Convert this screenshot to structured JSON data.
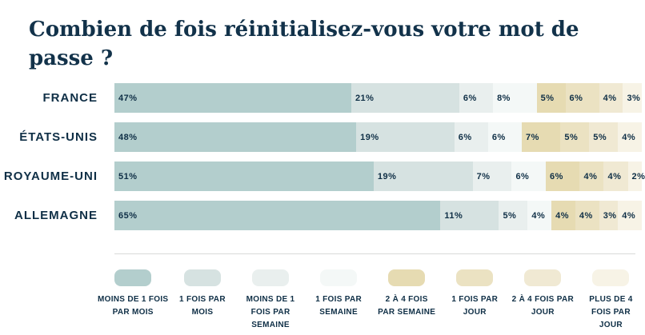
{
  "title": "Combien de fois réinitialisez-vous votre mot de passe ?",
  "colors": {
    "background": "#ffffff",
    "title_text": "#12324a",
    "label_text": "#0f2f46",
    "divider": "#d8dad8"
  },
  "chart_data": {
    "type": "bar",
    "variant": "horizontal-stacked-100",
    "title": "Combien de fois réinitialisez-vous votre mot de passe ?",
    "unit": "%",
    "xlim": [
      0,
      100
    ],
    "grid": false,
    "legend_position": "bottom",
    "categories": [
      "FRANCE",
      "ÉTATS-UNIS",
      "ROYAUME-UNI",
      "ALLEMAGNE"
    ],
    "series": [
      {
        "name": "MOINS DE 1 FOIS PAR MOIS",
        "legend_lines": [
          "MOINS DE 1 FOIS",
          "PAR MOIS"
        ],
        "color": "#b3cecd",
        "values": [
          47,
          48,
          51,
          65
        ]
      },
      {
        "name": "1 FOIS PAR MOIS",
        "legend_lines": [
          "1 FOIS PAR",
          "MOIS"
        ],
        "color": "#d6e2e1",
        "values": [
          21,
          19,
          19,
          11
        ]
      },
      {
        "name": "MOINS DE 1 FOIS PAR SEMAINE",
        "legend_lines": [
          "MOINS DE 1",
          "FOIS PAR",
          "SEMAINE"
        ],
        "color": "#e9efee",
        "values": [
          6,
          6,
          7,
          5
        ]
      },
      {
        "name": "1 FOIS PAR SEMAINE",
        "legend_lines": [
          "1 FOIS PAR",
          "SEMAINE"
        ],
        "color": "#f4f8f7",
        "values": [
          8,
          6,
          6,
          4
        ]
      },
      {
        "name": "2 À 4 FOIS PAR SEMAINE",
        "legend_lines": [
          "2 À 4 FOIS",
          "PAR SEMAINE"
        ],
        "color": "#e6dbb2",
        "values": [
          5,
          7,
          6,
          4
        ]
      },
      {
        "name": "1 FOIS PAR JOUR",
        "legend_lines": [
          "1 FOIS PAR",
          "JOUR"
        ],
        "color": "#ebe2c2",
        "values": [
          6,
          5,
          4,
          4
        ]
      },
      {
        "name": "2 À 4 FOIS PAR JOUR",
        "legend_lines": [
          "2 À 4 FOIS PAR",
          "JOUR"
        ],
        "color": "#f0e9d3",
        "values": [
          4,
          5,
          4,
          3
        ]
      },
      {
        "name": "PLUS DE 4 FOIS PAR JOUR",
        "legend_lines": [
          "PLUS DE 4",
          "FOIS PAR",
          "JOUR"
        ],
        "color": "#f7f3e6",
        "values": [
          3,
          4,
          2,
          4
        ]
      }
    ],
    "value_label_suffix": "%"
  }
}
